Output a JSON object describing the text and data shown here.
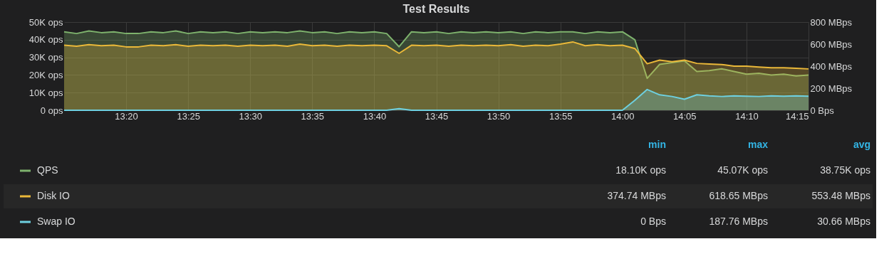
{
  "chart_data": {
    "type": "area",
    "title": "Test Results",
    "x": [
      13.25,
      13.2667,
      13.2833,
      13.3,
      13.3167,
      13.3333,
      13.35,
      13.3667,
      13.3833,
      13.4,
      13.4167,
      13.4333,
      13.45,
      13.4667,
      13.4833,
      13.5,
      13.5167,
      13.5333,
      13.55,
      13.5667,
      13.5833,
      13.6,
      13.6167,
      13.6333,
      13.65,
      13.6667,
      13.6833,
      13.7,
      13.7167,
      13.7333,
      13.75,
      13.7667,
      13.7833,
      13.8,
      13.8167,
      13.8333,
      13.85,
      13.8667,
      13.8833,
      13.9,
      13.9167,
      13.9333,
      13.95,
      13.9667,
      13.9833,
      14.0,
      14.0167,
      14.0333,
      14.05,
      14.0667,
      14.0833,
      14.1,
      14.1167,
      14.1333,
      14.15,
      14.1667,
      14.1833,
      14.2,
      14.2167,
      14.2333,
      14.25
    ],
    "series": [
      {
        "name": "QPS",
        "color": "#7eb26d",
        "values": [
          44500,
          43500,
          45000,
          44000,
          44500,
          43500,
          43500,
          44500,
          44000,
          45000,
          43500,
          44500,
          44000,
          44500,
          43500,
          44500,
          44000,
          44500,
          44000,
          45000,
          44000,
          44500,
          43500,
          44500,
          44000,
          44500,
          43500,
          36000,
          44500,
          44000,
          44500,
          43500,
          44500,
          44000,
          44500,
          44000,
          44500,
          43500,
          44500,
          44000,
          44500,
          44500,
          43500,
          44500,
          44000,
          44500,
          40000,
          18100,
          26000,
          27000,
          28000,
          22000,
          22500,
          23500,
          22000,
          20500,
          21000,
          20000,
          20500,
          19500,
          20000
        ]
      },
      {
        "name": "Disk IO",
        "color": "#eab839",
        "axis": "y2",
        "values": [
          590,
          580,
          595,
          585,
          590,
          575,
          575,
          590,
          585,
          595,
          580,
          590,
          585,
          590,
          580,
          590,
          585,
          590,
          580,
          600,
          585,
          590,
          580,
          590,
          585,
          590,
          585,
          516,
          590,
          585,
          590,
          580,
          590,
          585,
          590,
          585,
          595,
          580,
          590,
          585,
          600,
          620,
          585,
          595,
          585,
          590,
          560,
          422,
          455,
          440,
          455,
          425,
          420,
          415,
          400,
          400,
          392,
          385,
          385,
          380,
          375
        ]
      },
      {
        "name": "Swap IO",
        "color": "#6ed0e0",
        "axis": "y2",
        "values": [
          0,
          0,
          0,
          0,
          0,
          0,
          0,
          0,
          0,
          0,
          0,
          0,
          0,
          0,
          0,
          0,
          0,
          0,
          0,
          0,
          0,
          0,
          0,
          0,
          0,
          0,
          0,
          15,
          0,
          0,
          0,
          0,
          0,
          0,
          0,
          0,
          0,
          0,
          0,
          0,
          0,
          0,
          0,
          0,
          0,
          0,
          90,
          188,
          140,
          125,
          100,
          140,
          130,
          125,
          130,
          128,
          125,
          130,
          128,
          130,
          128
        ]
      }
    ],
    "xlim": [
      13.25,
      14.25
    ],
    "xticks": [
      {
        "value": 13.3333,
        "label": "13:20"
      },
      {
        "value": 13.4167,
        "label": "13:25"
      },
      {
        "value": 13.5,
        "label": "13:30"
      },
      {
        "value": 13.5833,
        "label": "13:35"
      },
      {
        "value": 13.6667,
        "label": "13:40"
      },
      {
        "value": 13.75,
        "label": "13:45"
      },
      {
        "value": 13.8333,
        "label": "13:50"
      },
      {
        "value": 13.9167,
        "label": "13:55"
      },
      {
        "value": 14.0,
        "label": "14:00"
      },
      {
        "value": 14.0833,
        "label": "14:05"
      },
      {
        "value": 14.1667,
        "label": "14:10"
      },
      {
        "value": 14.25,
        "label": "14:15"
      }
    ],
    "ylim": [
      0,
      50000
    ],
    "yticks": [
      {
        "value": 0,
        "label": "0 ops"
      },
      {
        "value": 10000,
        "label": "10K ops"
      },
      {
        "value": 20000,
        "label": "20K ops"
      },
      {
        "value": 30000,
        "label": "30K ops"
      },
      {
        "value": 40000,
        "label": "40K ops"
      },
      {
        "value": 50000,
        "label": "50K ops"
      }
    ],
    "y2lim": [
      0,
      800
    ],
    "y2ticks": [
      {
        "value": 0,
        "label": "0 Bps"
      },
      {
        "value": 200,
        "label": "200 MBps"
      },
      {
        "value": 400,
        "label": "400 MBps"
      },
      {
        "value": 600,
        "label": "600 MBps"
      },
      {
        "value": 800,
        "label": "800 MBps"
      }
    ],
    "grid": true,
    "legend": "bottom",
    "marker": "none",
    "line_style": "solid",
    "annotations": [
      "min",
      "max",
      "avg",
      "18.10K ops",
      "45.07K ops",
      "38.75K ops",
      "374.74 MBps",
      "618.65 MBps",
      "553.48 MBps",
      "0 Bps",
      "187.76 MBps",
      "30.66 MBps"
    ]
  }
}
